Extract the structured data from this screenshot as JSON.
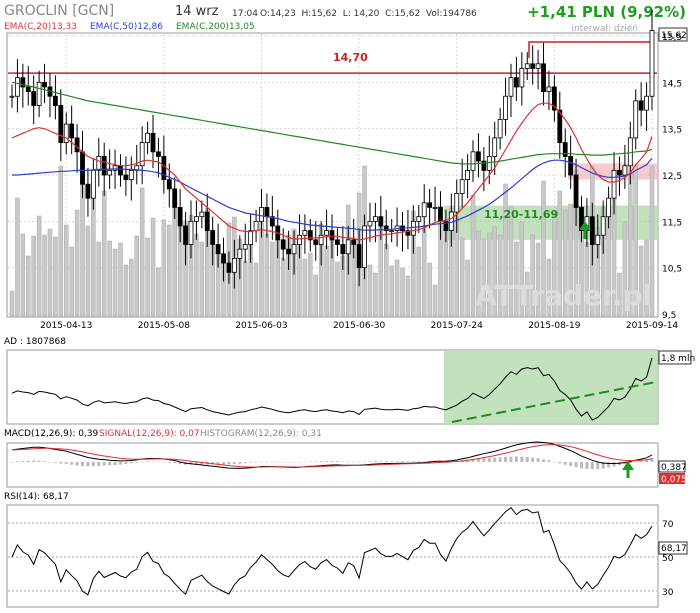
{
  "header": {
    "ticker": "GROCLIN [GCN]",
    "date": "14 wrz",
    "time": "17:04",
    "quote": "O:14,23  H:15,62  L: 14,20  C:15,62  Vol:194786",
    "change": "+1,41 PLN (9,92%)",
    "interval": "interwał: dzień"
  },
  "indicators": {
    "ema20": "EMA(C,20)13,33",
    "ema50": "EMA(C,50)12,86",
    "ema200": "EMA(C,200)13,05"
  },
  "annotations": {
    "resistance_label": "14,70",
    "zone_label": "11,20-11,69",
    "last_price": "15,62",
    "watermark": "ATTrader.pl"
  },
  "colors": {
    "ema20": "#e03030",
    "ema50": "#2b3fd0",
    "ema200": "#1f8a1f",
    "resistance": "#cc2020",
    "zone_green": "#8fca88",
    "zone_red": "#f0a0a8",
    "volume": "#c8c8c8",
    "candle_up": "#ffffff",
    "candle_down": "#000000",
    "title": "#888888",
    "change": "#1e9e1e"
  },
  "price_panel": {
    "y_ticks": [
      "15,5",
      "14,5",
      "13,5",
      "12,5",
      "11,5",
      "10,5",
      "9,5"
    ],
    "x_ticks": [
      "2015-04-13",
      "2015-05-08",
      "2015-06-03",
      "2015-06-30",
      "2015-07-24",
      "2015-08-19",
      "2015-09-14"
    ]
  },
  "ad_panel": {
    "label": "AD : 1807868",
    "last": "1,8 mln"
  },
  "macd_panel": {
    "label_macd": "MACD(12,26,9): 0,39",
    "label_signal": "SIGNAL(12,26,9): 0,07",
    "label_hist": "HISTOGRAM(12,26,9): 0,31",
    "last_macd": "0,387",
    "last_signal": "0,075"
  },
  "rsi_panel": {
    "label": "RSI(14): 68,17",
    "last": "68,17",
    "y_ticks": [
      "70",
      "50",
      "30"
    ]
  },
  "chart_data": {
    "type": "candlestick",
    "title": "GROCLIN [GCN]",
    "ylim": [
      9.5,
      15.8
    ],
    "x": [
      "2015-03-27",
      "2015-03-30",
      "2015-03-31",
      "2015-04-01",
      "2015-04-02",
      "2015-04-03",
      "2015-04-07",
      "2015-04-08",
      "2015-04-09",
      "2015-04-10",
      "2015-04-13",
      "2015-04-14",
      "2015-04-15",
      "2015-04-16",
      "2015-04-17",
      "2015-04-20",
      "2015-04-21",
      "2015-04-22",
      "2015-04-23",
      "2015-04-24",
      "2015-04-27",
      "2015-04-28",
      "2015-04-29",
      "2015-04-30",
      "2015-05-04",
      "2015-05-05",
      "2015-05-06",
      "2015-05-07",
      "2015-05-08",
      "2015-05-11",
      "2015-05-12",
      "2015-05-13",
      "2015-05-14",
      "2015-05-15",
      "2015-05-18",
      "2015-05-19",
      "2015-05-20",
      "2015-05-21",
      "2015-05-22",
      "2015-05-25",
      "2015-05-26",
      "2015-05-27",
      "2015-05-28",
      "2015-05-29",
      "2015-06-01",
      "2015-06-02",
      "2015-06-03",
      "2015-06-05",
      "2015-06-08",
      "2015-06-09",
      "2015-06-10",
      "2015-06-11",
      "2015-06-12",
      "2015-06-15",
      "2015-06-16",
      "2015-06-17",
      "2015-06-18",
      "2015-06-19",
      "2015-06-22",
      "2015-06-23",
      "2015-06-24",
      "2015-06-25",
      "2015-06-26",
      "2015-06-29",
      "2015-06-30",
      "2015-07-01",
      "2015-07-02",
      "2015-07-03",
      "2015-07-06",
      "2015-07-07",
      "2015-07-08",
      "2015-07-09",
      "2015-07-10",
      "2015-07-13",
      "2015-07-14",
      "2015-07-15",
      "2015-07-16",
      "2015-07-17",
      "2015-07-20",
      "2015-07-21",
      "2015-07-22",
      "2015-07-23",
      "2015-07-24",
      "2015-07-27",
      "2015-07-28",
      "2015-07-29",
      "2015-07-30",
      "2015-07-31",
      "2015-08-03",
      "2015-08-04",
      "2015-08-05",
      "2015-08-06",
      "2015-08-07",
      "2015-08-10",
      "2015-08-11",
      "2015-08-12",
      "2015-08-13",
      "2015-08-14",
      "2015-08-17",
      "2015-08-18",
      "2015-08-19",
      "2015-08-20",
      "2015-08-21",
      "2015-08-24",
      "2015-08-25",
      "2015-08-26",
      "2015-08-27",
      "2015-08-28",
      "2015-08-31",
      "2015-09-01",
      "2015-09-02",
      "2015-09-03",
      "2015-09-04",
      "2015-09-07",
      "2015-09-08",
      "2015-09-09",
      "2015-09-10",
      "2015-09-11",
      "2015-09-14"
    ],
    "close": [
      14.2,
      14.6,
      14.4,
      14.3,
      14.0,
      14.5,
      14.4,
      14.2,
      14.0,
      13.2,
      13.6,
      13.3,
      13.0,
      12.3,
      12.0,
      12.6,
      12.9,
      12.5,
      12.6,
      12.7,
      12.5,
      12.4,
      12.6,
      12.7,
      13.2,
      13.4,
      13.0,
      12.9,
      12.4,
      12.2,
      11.8,
      11.4,
      11.0,
      11.5,
      11.6,
      11.7,
      11.3,
      11.0,
      10.8,
      10.6,
      10.4,
      10.7,
      10.9,
      11.0,
      11.3,
      11.5,
      11.8,
      11.6,
      11.4,
      11.1,
      10.9,
      10.8,
      11.0,
      11.2,
      11.3,
      11.1,
      11.0,
      11.2,
      11.3,
      11.1,
      11.0,
      10.8,
      11.1,
      11.0,
      10.5,
      11.4,
      11.5,
      11.6,
      11.4,
      11.3,
      11.3,
      11.4,
      11.3,
      11.2,
      11.5,
      11.6,
      11.9,
      11.8,
      11.8,
      11.5,
      11.3,
      11.7,
      12.1,
      12.4,
      12.6,
      13.0,
      12.8,
      12.6,
      12.9,
      13.3,
      13.7,
      14.2,
      14.6,
      14.4,
      14.8,
      14.9,
      14.8,
      14.9,
      14.3,
      14.4,
      13.9,
      13.2,
      12.9,
      12.5,
      11.8,
      11.3,
      11.6,
      11.0,
      11.2,
      11.6,
      12.0,
      12.6,
      12.5,
      12.7,
      13.3,
      14.1,
      13.9,
      14.2,
      15.62
    ],
    "ema20": [
      13.3,
      13.35,
      13.4,
      13.45,
      13.5,
      13.52,
      13.5,
      13.45,
      13.4,
      13.35,
      13.3,
      13.2,
      13.1,
      13.0,
      12.9,
      12.85,
      12.8,
      12.78,
      12.75,
      12.72,
      12.7,
      12.7,
      12.72,
      12.75,
      12.8,
      12.82,
      12.8,
      12.78,
      12.7,
      12.6,
      12.5,
      12.35,
      12.2,
      12.1,
      12.0,
      11.9,
      11.8,
      11.7,
      11.6,
      11.5,
      11.4,
      11.35,
      11.3,
      11.28,
      11.28,
      11.3,
      11.32,
      11.3,
      11.28,
      11.25,
      11.2,
      11.15,
      11.12,
      11.12,
      11.13,
      11.14,
      11.14,
      11.15,
      11.17,
      11.18,
      11.18,
      11.15,
      11.14,
      11.13,
      11.1,
      11.12,
      11.15,
      11.18,
      11.2,
      11.22,
      11.23,
      11.25,
      11.27,
      11.28,
      11.3,
      11.32,
      11.36,
      11.42,
      11.48,
      11.5,
      11.52,
      11.56,
      11.65,
      11.78,
      11.9,
      12.05,
      12.2,
      12.35,
      12.5,
      12.65,
      12.85,
      13.05,
      13.25,
      13.45,
      13.62,
      13.78,
      13.92,
      14.02,
      14.05,
      14.05,
      13.98,
      13.85,
      13.7,
      13.52,
      13.3,
      13.05,
      12.85,
      12.65,
      12.5,
      12.4,
      12.35,
      12.35,
      12.38,
      12.45,
      12.55,
      12.72,
      12.85,
      13.0,
      13.33
    ],
    "ema50": [
      12.5,
      12.5,
      12.51,
      12.52,
      12.53,
      12.54,
      12.55,
      12.56,
      12.57,
      12.58,
      12.58,
      12.59,
      12.6,
      12.6,
      12.6,
      12.61,
      12.62,
      12.62,
      12.63,
      12.63,
      12.63,
      12.62,
      12.62,
      12.61,
      12.6,
      12.59,
      12.57,
      12.55,
      12.5,
      12.45,
      12.4,
      12.35,
      12.28,
      12.22,
      12.16,
      12.1,
      12.04,
      11.98,
      11.92,
      11.86,
      11.8,
      11.76,
      11.72,
      11.68,
      11.66,
      11.64,
      11.62,
      11.6,
      11.58,
      11.56,
      11.53,
      11.5,
      11.48,
      11.46,
      11.44,
      11.42,
      11.41,
      11.4,
      11.39,
      11.38,
      11.37,
      11.36,
      11.35,
      11.34,
      11.32,
      11.31,
      11.31,
      11.31,
      11.32,
      11.32,
      11.33,
      11.34,
      11.35,
      11.36,
      11.37,
      11.38,
      11.4,
      11.42,
      11.44,
      11.45,
      11.46,
      11.48,
      11.52,
      11.57,
      11.62,
      11.68,
      11.74,
      11.8,
      11.87,
      11.95,
      12.04,
      12.13,
      12.22,
      12.32,
      12.42,
      12.52,
      12.62,
      12.7,
      12.76,
      12.8,
      12.82,
      12.82,
      12.8,
      12.77,
      12.72,
      12.66,
      12.6,
      12.54,
      12.5,
      12.47,
      12.45,
      12.45,
      12.46,
      12.48,
      12.52,
      12.6,
      12.66,
      12.72,
      12.86
    ],
    "ema200": [
      14.5,
      14.48,
      14.45,
      14.42,
      14.4,
      14.37,
      14.34,
      14.31,
      14.28,
      14.25,
      14.22,
      14.19,
      14.16,
      14.13,
      14.1,
      14.08,
      14.06,
      14.04,
      14.02,
      14.0,
      13.98,
      13.96,
      13.94,
      13.92,
      13.9,
      13.88,
      13.86,
      13.84,
      13.82,
      13.8,
      13.78,
      13.76,
      13.74,
      13.72,
      13.7,
      13.68,
      13.66,
      13.64,
      13.62,
      13.6,
      13.58,
      13.56,
      13.54,
      13.52,
      13.5,
      13.48,
      13.46,
      13.44,
      13.42,
      13.4,
      13.38,
      13.36,
      13.34,
      13.32,
      13.3,
      13.28,
      13.26,
      13.24,
      13.22,
      13.2,
      13.18,
      13.16,
      13.14,
      13.12,
      13.1,
      13.08,
      13.06,
      13.04,
      13.02,
      13.0,
      12.98,
      12.96,
      12.94,
      12.92,
      12.9,
      12.88,
      12.86,
      12.84,
      12.82,
      12.8,
      12.78,
      12.76,
      12.75,
      12.74,
      12.74,
      12.74,
      12.75,
      12.76,
      12.77,
      12.78,
      12.8,
      12.82,
      12.84,
      12.86,
      12.88,
      12.9,
      12.92,
      12.94,
      12.95,
      12.96,
      12.96,
      12.96,
      12.96,
      12.96,
      12.95,
      12.94,
      12.94,
      12.93,
      12.93,
      12.93,
      12.94,
      12.95,
      12.96,
      12.97,
      12.98,
      13.0,
      13.01,
      13.02,
      13.05
    ],
    "resistance": 14.7,
    "support_zone": [
      11.2,
      11.69
    ],
    "last_close": 15.62,
    "ad_last": 1807868,
    "macd_last": 0.387,
    "signal_last": 0.075,
    "histogram_last": 0.31,
    "rsi_last": 68.17
  }
}
